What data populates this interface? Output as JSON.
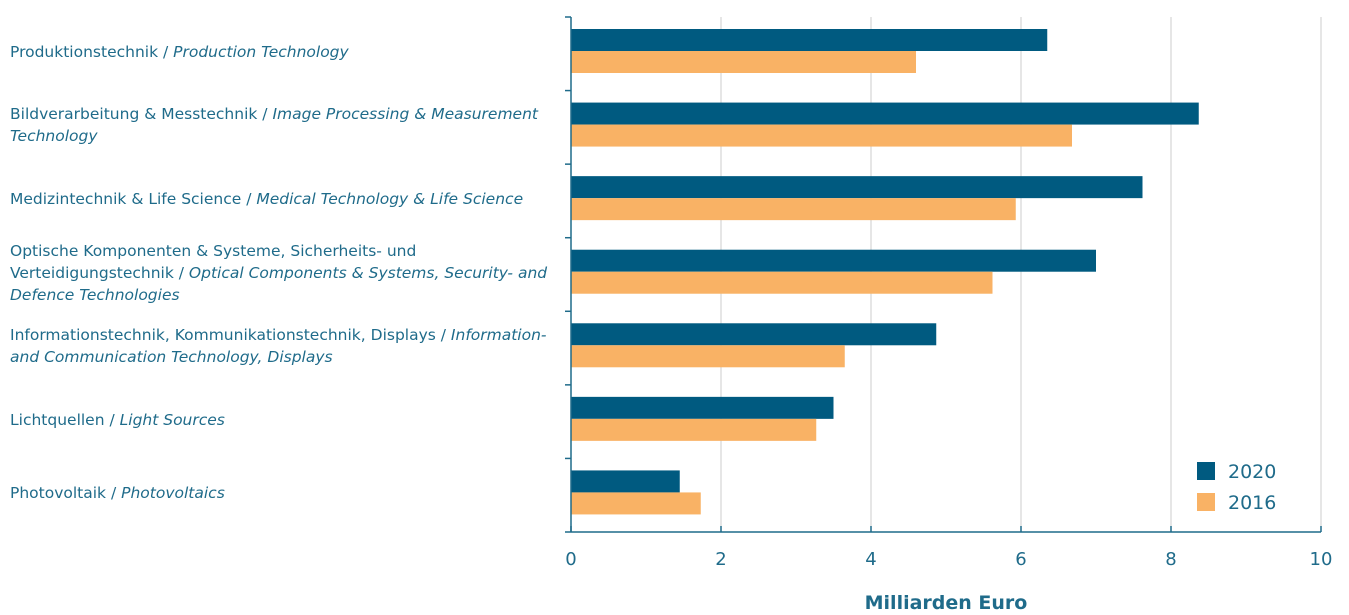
{
  "chart_data": {
    "type": "bar",
    "orientation": "horizontal",
    "title": "",
    "xlabel": "Milliarden Euro",
    "ylabel": "",
    "xlim": [
      0,
      10
    ],
    "xticks": [
      0,
      2,
      4,
      6,
      8,
      10
    ],
    "grid": "vertical",
    "legend_position": "bottom-right",
    "categories": [
      {
        "de": "Produktionstechnik / ",
        "en": "Production Technology"
      },
      {
        "de": "Bildverarbeitung & Messtechnik / ",
        "en": "Image Processing & Measurement Technology"
      },
      {
        "de": "Medizintechnik & Life Science / ",
        "en": "Medical Technology & Life Science"
      },
      {
        "de": "Optische Komponenten & Systeme, Sicherheits- und Verteidigungstechnik / ",
        "en": "Optical Components & Systems, Security- and Defence Technologies"
      },
      {
        "de": "Informationstechnik, Kommunikationstechnik, Displays / ",
        "en": "Information- and Communication Technology, Displays"
      },
      {
        "de": "Lichtquellen / ",
        "en": "Light Sources"
      },
      {
        "de": "Photovoltaik / ",
        "en": "Photovoltaics"
      }
    ],
    "series": [
      {
        "name": "2020",
        "color": "#005a80",
        "values": [
          6.35,
          8.37,
          7.62,
          7.0,
          4.87,
          3.5,
          1.45
        ]
      },
      {
        "name": "2016",
        "color": "#f9b265",
        "values": [
          4.6,
          6.68,
          5.93,
          5.62,
          3.65,
          3.27,
          1.73
        ]
      }
    ],
    "axis_color": "#1f6b8a",
    "grid_color": "#cccccc"
  }
}
